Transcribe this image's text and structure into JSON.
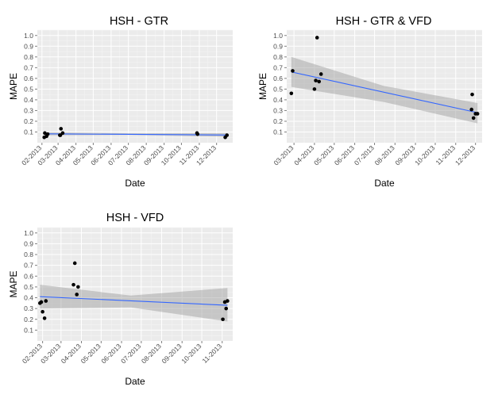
{
  "chart_data": [
    {
      "type": "scatter",
      "title": "HSH -   GTR",
      "xlabel": "Date",
      "ylabel": "MAPE",
      "x_type": "date",
      "xlim": [
        "2013-01-24",
        "2013-12-29"
      ],
      "ylim": [
        0,
        1.05
      ],
      "grid": true,
      "x_ticks": [
        {
          "date": "2013-02-01",
          "label": "02-2013"
        },
        {
          "date": "2013-03-01",
          "label": "03-2013"
        },
        {
          "date": "2013-04-01",
          "label": "04-2013"
        },
        {
          "date": "2013-05-01",
          "label": "05-2013"
        },
        {
          "date": "2013-06-01",
          "label": "06-2013"
        },
        {
          "date": "2013-07-01",
          "label": "07-2013"
        },
        {
          "date": "2013-08-01",
          "label": "08-2013"
        },
        {
          "date": "2013-09-01",
          "label": "09-2013"
        },
        {
          "date": "2013-10-01",
          "label": "10-2013"
        },
        {
          "date": "2013-11-01",
          "label": "11-2013"
        },
        {
          "date": "2013-12-01",
          "label": "12-2013"
        }
      ],
      "y_ticks": [
        {
          "value": 0.1,
          "label": "0.1"
        },
        {
          "value": 0.2,
          "label": "0.2"
        },
        {
          "value": 0.3,
          "label": "0.3"
        },
        {
          "value": 0.4,
          "label": "0.4"
        },
        {
          "value": 0.5,
          "label": "0.5"
        },
        {
          "value": 0.6,
          "label": "0.6"
        },
        {
          "value": 0.7,
          "label": "0.7"
        },
        {
          "value": 0.8,
          "label": "0.8"
        },
        {
          "value": 0.9,
          "label": "0.9"
        },
        {
          "value": 1.0,
          "label": "1.0"
        }
      ],
      "points": [
        {
          "x": "2013-02-05",
          "y": 0.05
        },
        {
          "x": "2013-02-06",
          "y": 0.09
        },
        {
          "x": "2013-02-09",
          "y": 0.06
        },
        {
          "x": "2013-02-11",
          "y": 0.08
        },
        {
          "x": "2013-03-04",
          "y": 0.07
        },
        {
          "x": "2013-03-05",
          "y": 0.07
        },
        {
          "x": "2013-03-06",
          "y": 0.13
        },
        {
          "x": "2013-03-09",
          "y": 0.09
        },
        {
          "x": "2013-10-28",
          "y": 0.09
        },
        {
          "x": "2013-10-29",
          "y": 0.08
        },
        {
          "x": "2013-12-16",
          "y": 0.05
        },
        {
          "x": "2013-12-19",
          "y": 0.07
        }
      ],
      "trend": {
        "x": [
          "2013-02-05",
          "2013-12-19"
        ],
        "y": [
          0.083,
          0.072
        ]
      },
      "band": {
        "x": [
          "2013-02-05",
          "2013-07-05",
          "2013-12-19"
        ],
        "lower": [
          0.068,
          0.073,
          0.055
        ],
        "upper": [
          0.098,
          0.088,
          0.089
        ]
      },
      "colors": {
        "point": "#000000",
        "trend": "#3366ff",
        "band": "#999999",
        "panel": "#ebebeb",
        "grid": "#ffffff"
      }
    },
    {
      "type": "scatter",
      "title": "HSH -   GTR & VFD",
      "xlabel": "Date",
      "ylabel": "MAPE",
      "x_type": "date",
      "xlim": [
        "2013-02-18",
        "2013-12-11"
      ],
      "ylim": [
        0,
        1.05
      ],
      "grid": true,
      "x_ticks": [
        {
          "date": "2013-03-01",
          "label": "03-2013"
        },
        {
          "date": "2013-04-01",
          "label": "04-2013"
        },
        {
          "date": "2013-05-01",
          "label": "05-2013"
        },
        {
          "date": "2013-06-01",
          "label": "06-2013"
        },
        {
          "date": "2013-07-01",
          "label": "07-2013"
        },
        {
          "date": "2013-08-01",
          "label": "08-2013"
        },
        {
          "date": "2013-09-01",
          "label": "09-2013"
        },
        {
          "date": "2013-10-01",
          "label": "10-2013"
        },
        {
          "date": "2013-11-01",
          "label": "11-2013"
        },
        {
          "date": "2013-12-01",
          "label": "12-2013"
        }
      ],
      "y_ticks": [
        {
          "value": 0.1,
          "label": "0.1"
        },
        {
          "value": 0.2,
          "label": "0.2"
        },
        {
          "value": 0.3,
          "label": "0.3"
        },
        {
          "value": 0.4,
          "label": "0.4"
        },
        {
          "value": 0.5,
          "label": "0.5"
        },
        {
          "value": 0.6,
          "label": "0.6"
        },
        {
          "value": 0.7,
          "label": "0.7"
        },
        {
          "value": 0.8,
          "label": "0.8"
        },
        {
          "value": 0.9,
          "label": "0.9"
        },
        {
          "value": 1.0,
          "label": "1.0"
        }
      ],
      "points": [
        {
          "x": "2013-02-25",
          "y": 0.46
        },
        {
          "x": "2013-02-27",
          "y": 0.67
        },
        {
          "x": "2013-04-01",
          "y": 0.5
        },
        {
          "x": "2013-04-03",
          "y": 0.58
        },
        {
          "x": "2013-04-05",
          "y": 0.98
        },
        {
          "x": "2013-04-08",
          "y": 0.57
        },
        {
          "x": "2013-04-11",
          "y": 0.64
        },
        {
          "x": "2013-11-25",
          "y": 0.31
        },
        {
          "x": "2013-11-26",
          "y": 0.45
        },
        {
          "x": "2013-11-28",
          "y": 0.23
        },
        {
          "x": "2013-12-01",
          "y": 0.27
        },
        {
          "x": "2013-12-04",
          "y": 0.27
        }
      ],
      "trend": {
        "x": [
          "2013-02-25",
          "2013-12-04"
        ],
        "y": [
          0.66,
          0.28
        ]
      },
      "band": {
        "x": [
          "2013-02-25",
          "2013-07-15",
          "2013-12-04"
        ],
        "lower": [
          0.52,
          0.38,
          0.18
        ],
        "upper": [
          0.8,
          0.53,
          0.37
        ]
      },
      "colors": {
        "point": "#000000",
        "trend": "#3366ff",
        "band": "#999999",
        "panel": "#ebebeb",
        "grid": "#ffffff"
      }
    },
    {
      "type": "scatter",
      "title": "HSH -   VFD",
      "xlabel": "Date",
      "ylabel": "MAPE",
      "x_type": "date",
      "xlim": [
        "2013-01-24",
        "2013-11-17"
      ],
      "ylim": [
        0,
        1.05
      ],
      "grid": true,
      "x_ticks": [
        {
          "date": "2013-02-01",
          "label": "02-2013"
        },
        {
          "date": "2013-03-01",
          "label": "03-2013"
        },
        {
          "date": "2013-04-01",
          "label": "04-2013"
        },
        {
          "date": "2013-05-01",
          "label": "05-2013"
        },
        {
          "date": "2013-06-01",
          "label": "06-2013"
        },
        {
          "date": "2013-07-01",
          "label": "07-2013"
        },
        {
          "date": "2013-08-01",
          "label": "08-2013"
        },
        {
          "date": "2013-09-01",
          "label": "09-2013"
        },
        {
          "date": "2013-10-01",
          "label": "10-2013"
        },
        {
          "date": "2013-11-01",
          "label": "11-2013"
        }
      ],
      "y_ticks": [
        {
          "value": 0.1,
          "label": "0.1"
        },
        {
          "value": 0.2,
          "label": "0.2"
        },
        {
          "value": 0.3,
          "label": "0.3"
        },
        {
          "value": 0.4,
          "label": "0.4"
        },
        {
          "value": 0.5,
          "label": "0.5"
        },
        {
          "value": 0.6,
          "label": "0.6"
        },
        {
          "value": 0.7,
          "label": "0.7"
        },
        {
          "value": 0.8,
          "label": "0.8"
        },
        {
          "value": 0.9,
          "label": "0.9"
        },
        {
          "value": 1.0,
          "label": "1.0"
        }
      ],
      "points": [
        {
          "x": "2013-01-28",
          "y": 0.35
        },
        {
          "x": "2013-01-30",
          "y": 0.36
        },
        {
          "x": "2013-02-01",
          "y": 0.27
        },
        {
          "x": "2013-02-04",
          "y": 0.21
        },
        {
          "x": "2013-02-06",
          "y": 0.37
        },
        {
          "x": "2013-03-20",
          "y": 0.52
        },
        {
          "x": "2013-03-22",
          "y": 0.72
        },
        {
          "x": "2013-03-25",
          "y": 0.43
        },
        {
          "x": "2013-03-27",
          "y": 0.5
        },
        {
          "x": "2013-11-02",
          "y": 0.2
        },
        {
          "x": "2013-11-05",
          "y": 0.36
        },
        {
          "x": "2013-11-07",
          "y": 0.3
        },
        {
          "x": "2013-11-09",
          "y": 0.37
        }
      ],
      "trend": {
        "x": [
          "2013-01-28",
          "2013-11-09"
        ],
        "y": [
          0.41,
          0.33
        ]
      },
      "band": {
        "x": [
          "2013-01-28",
          "2013-06-15",
          "2013-11-09"
        ],
        "lower": [
          0.3,
          0.31,
          0.18
        ],
        "upper": [
          0.52,
          0.42,
          0.49
        ]
      },
      "colors": {
        "point": "#000000",
        "trend": "#3366ff",
        "band": "#999999",
        "panel": "#ebebeb",
        "grid": "#ffffff"
      }
    }
  ]
}
